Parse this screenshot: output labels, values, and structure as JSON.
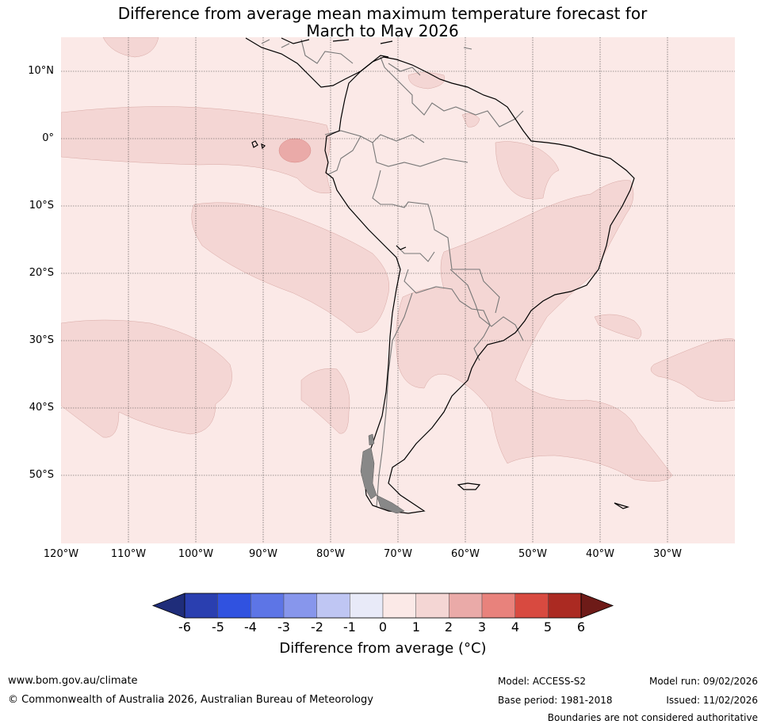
{
  "title": {
    "line1": "Difference from average mean maximum temperature forecast for",
    "line2": "March to May 2026"
  },
  "map": {
    "lat_labels": [
      "10°N",
      "0°",
      "10°S",
      "20°S",
      "30°S",
      "40°S",
      "50°S"
    ],
    "lon_labels": [
      "120°W",
      "110°W",
      "100°W",
      "90°W",
      "80°W",
      "70°W",
      "60°W",
      "50°W",
      "40°W",
      "30°W"
    ],
    "background_colour": "#fbe9e7",
    "anomaly_colour": "#f4d6d4",
    "strong_anomaly_colour": "#eaaaa8"
  },
  "colorbar": {
    "ticks": [
      "-6",
      "-5",
      "-4",
      "-3",
      "-2",
      "-1",
      "0",
      "1",
      "2",
      "3",
      "4",
      "5",
      "6"
    ],
    "colours": [
      "#1f2d7a",
      "#2a3fb0",
      "#3052e0",
      "#5d75e6",
      "#8796ec",
      "#bfc6f3",
      "#e8eaf8",
      "#fbe9e7",
      "#f4d6d4",
      "#eaaaa8",
      "#e8827c",
      "#d84a40",
      "#ab2a22",
      "#6e1b18"
    ],
    "label": "Difference from average (°C)"
  },
  "footer": {
    "website": "www.bom.gov.au/climate",
    "copyright": "© Commonwealth of Australia 2026, Australian Bureau of Meteorology",
    "model": "Model: ACCESS-S2",
    "base_period": "Base period: 1981-2018",
    "model_run": "Model run: 09/02/2026",
    "issued": "Issued: 11/02/2026",
    "disclaimer": "Boundaries are not considered authoritative"
  }
}
